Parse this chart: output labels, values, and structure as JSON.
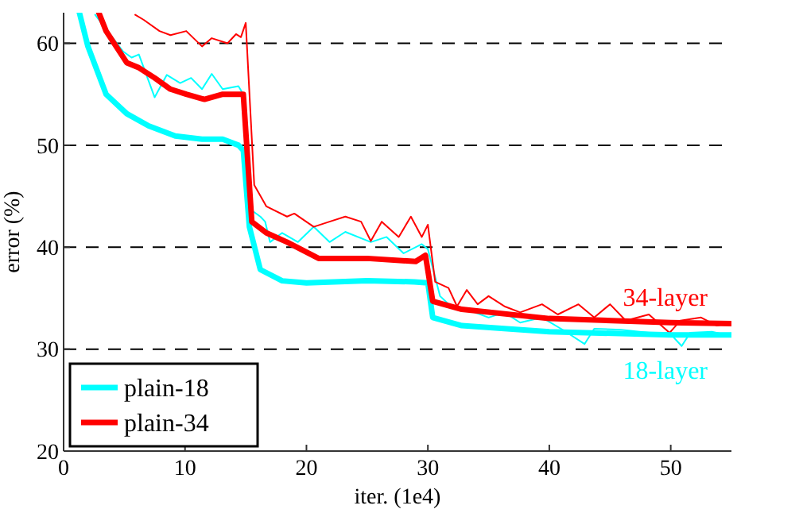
{
  "chart_data": {
    "type": "line",
    "xlabel": "iter. (1e4)",
    "ylabel": "error (%)",
    "xlim": [
      0,
      55
    ],
    "ylim": [
      20,
      63
    ],
    "xticks": [
      0,
      10,
      20,
      30,
      40,
      50
    ],
    "yticks": [
      20,
      30,
      40,
      50,
      60
    ],
    "grid": "y",
    "legend": "bottom left",
    "line_style": "solid",
    "marker": "none",
    "series": [
      {
        "color": "#00ffff",
        "x": [
          2.6,
          4.9,
          5.6,
          6.2,
          7.5,
          8.5,
          9.6,
          10.5,
          11.4,
          12.2,
          13.1,
          14.4,
          14.8,
          15.5,
          16.2,
          16.6,
          17,
          18,
          19.3,
          20.6,
          21.9,
          23.2,
          25.3,
          26.6,
          28,
          29.5,
          30,
          31,
          31.9,
          33.2,
          35,
          36.3,
          37.6,
          39.4,
          41.1,
          42.9,
          43.7,
          45.9,
          48.2,
          49.9,
          50.9,
          51.6,
          53.4,
          54.9
        ],
        "values": [
          62.8,
          59.2,
          58.6,
          58.9,
          54.7,
          56.9,
          56.1,
          56.6,
          55.5,
          57,
          55.5,
          55.8,
          55,
          43.6,
          43,
          42.5,
          40.5,
          41.4,
          40.5,
          42,
          40.5,
          41.5,
          40.5,
          41,
          39.4,
          40.3,
          39.8,
          35.2,
          34.2,
          33.9,
          33.1,
          33.6,
          32.6,
          33.1,
          31.9,
          30.5,
          32,
          31.9,
          31.6,
          31.6,
          30.3,
          31.6,
          31.7,
          31.3
        ]
      },
      {
        "color": "#ff0000",
        "x": [
          5.9,
          6.6,
          7.9,
          8.8,
          10.1,
          11.4,
          12.2,
          13.5,
          14.2,
          14.6,
          15,
          15.7,
          16.7,
          18.4,
          19,
          20.6,
          21.9,
          23.2,
          24.5,
          25.3,
          26.2,
          27.6,
          28.6,
          29.5,
          30,
          30.6,
          31.7,
          32.4,
          33.2,
          34.1,
          35,
          36.3,
          37.6,
          39.4,
          40.7,
          42.4,
          43.7,
          45,
          46.3,
          48.2,
          49.9,
          50.8,
          52.5,
          53.8,
          55
        ],
        "values": [
          62.8,
          62.3,
          61.2,
          60.8,
          61.2,
          59.7,
          60.5,
          60,
          60.9,
          60.6,
          62,
          46.1,
          44,
          43,
          43.3,
          42,
          42.5,
          43,
          42.5,
          40.6,
          42.5,
          41,
          43,
          41,
          42.2,
          36.6,
          36,
          34.2,
          35.8,
          34.4,
          35.2,
          34.2,
          33.6,
          34.4,
          33.4,
          34.4,
          33.1,
          34.4,
          32.8,
          33.4,
          31.6,
          32.8,
          33.1,
          32.3,
          32.6
        ]
      },
      {
        "name": "plain-18",
        "color": "#00ffff",
        "x": [
          1.3,
          2,
          3.5,
          5.2,
          7,
          9.2,
          11.4,
          13.1,
          14.4,
          14.8,
          15.3,
          16.2,
          18,
          20,
          25,
          28.9,
          30,
          30.4,
          32.8,
          40,
          50,
          55
        ],
        "values": [
          63,
          59.7,
          55,
          53.1,
          51.9,
          50.9,
          50.6,
          50.6,
          50,
          49.5,
          42,
          37.8,
          36.7,
          36.5,
          36.7,
          36.6,
          36.5,
          33.1,
          32.3,
          31.7,
          31.4,
          31.4
        ]
      },
      {
        "name": "plain-34",
        "color": "#ff0000",
        "x": [
          2.9,
          3.5,
          5.2,
          6.2,
          7.5,
          8.8,
          10.1,
          11.6,
          13.1,
          14.8,
          15.5,
          16.7,
          18.4,
          21,
          25,
          29,
          29.8,
          30.4,
          32.8,
          40,
          50,
          55
        ],
        "values": [
          63,
          61.2,
          58.1,
          57.6,
          56.6,
          55.5,
          55,
          54.5,
          55,
          55,
          42.5,
          41.4,
          40.5,
          38.9,
          38.9,
          38.6,
          39.2,
          34.7,
          33.9,
          33,
          32.6,
          32.5
        ]
      }
    ],
    "annotations": [
      "34-layer",
      "18-layer"
    ]
  }
}
